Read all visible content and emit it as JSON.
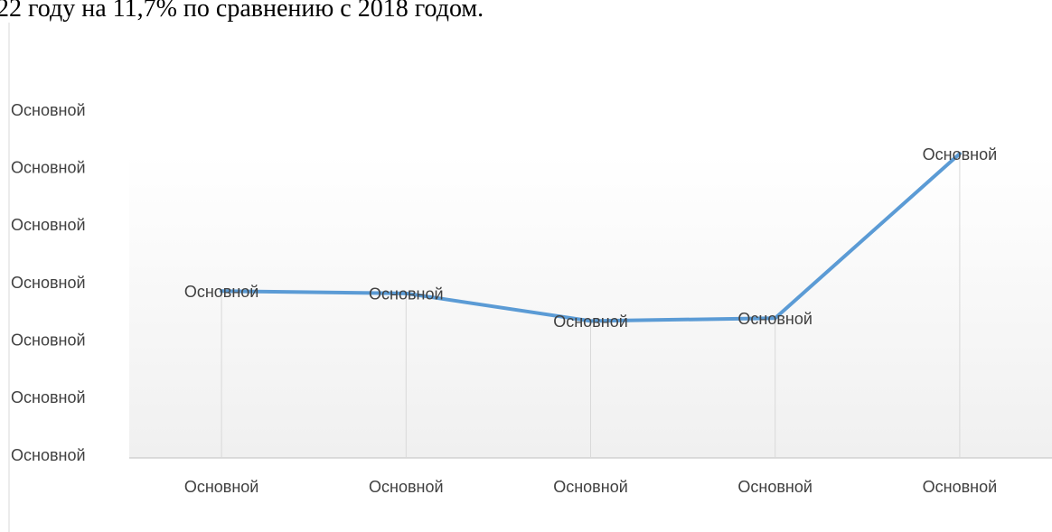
{
  "header": {
    "text": "22 году на 11,7% по сравнению с 2018 годом."
  },
  "chart_data": {
    "type": "line",
    "categories": [
      "Основной",
      "Основной",
      "Основной",
      "Основной",
      "Основной"
    ],
    "values": [
      2.87,
      2.83,
      2.35,
      2.4,
      5.26
    ],
    "value_labels": [
      "Основной",
      "Основной",
      "Основной",
      "Основной",
      "Основной"
    ],
    "color": "#5b9bd5",
    "ylim": [
      0,
      6
    ],
    "yticks": [
      {
        "value": 0,
        "label": "Основной"
      },
      {
        "value": 1,
        "label": "Основной"
      },
      {
        "value": 2,
        "label": "Основной"
      },
      {
        "value": 3,
        "label": "Основной"
      },
      {
        "value": 4,
        "label": "Основной"
      },
      {
        "value": 5,
        "label": "Основной"
      },
      {
        "value": 6,
        "label": "Основной"
      }
    ],
    "drop_lines": true
  }
}
